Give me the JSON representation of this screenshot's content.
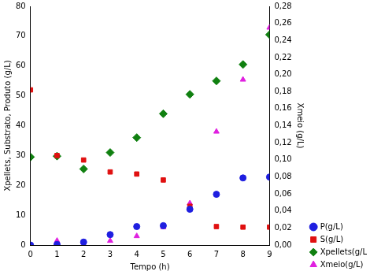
{
  "chart_data": {
    "type": "scatter",
    "x_label": "Tempo (h)",
    "y_label": "Xpellets, Substrato, Produto (g/L)",
    "y2_label": "Xmeio (g/L)",
    "x": [
      0,
      1,
      2,
      3,
      4,
      5,
      6,
      7,
      8,
      9
    ],
    "xlim": [
      0,
      9
    ],
    "xticks": [
      0,
      1,
      2,
      3,
      4,
      5,
      6,
      7,
      8,
      9
    ],
    "ylim": [
      0,
      80
    ],
    "yticks": [
      0,
      10,
      20,
      30,
      40,
      50,
      60,
      70,
      80
    ],
    "y2lim": [
      0,
      0.28
    ],
    "y2ticks": [
      {
        "value": 0,
        "label": "0,00"
      },
      {
        "value": 0.02,
        "label": "0,02"
      },
      {
        "value": 0.04,
        "label": "0,04"
      },
      {
        "value": 0.06,
        "label": "0,06"
      },
      {
        "value": 0.08,
        "label": "0,08"
      },
      {
        "value": 0.1,
        "label": "0,10"
      },
      {
        "value": 0.12,
        "label": "0,12"
      },
      {
        "value": 0.14,
        "label": "0,14"
      },
      {
        "value": 0.16,
        "label": "0,16"
      },
      {
        "value": 0.18,
        "label": "0,18"
      },
      {
        "value": 0.2,
        "label": "0,20"
      },
      {
        "value": 0.22,
        "label": "0,22"
      },
      {
        "value": 0.24,
        "label": "0,24"
      },
      {
        "value": 0.26,
        "label": "0,26"
      },
      {
        "value": 0.28,
        "label": "0,28"
      }
    ],
    "grid": false,
    "legend": "bottom right",
    "series": [
      {
        "name": "P(g/L)",
        "color": "#1f1fe0",
        "marker": "circle",
        "values": [
          0,
          0.2,
          1,
          3.5,
          6.2,
          6.5,
          12,
          17,
          22.5,
          22.8
        ]
      },
      {
        "name": "S(g/L)",
        "color": "#e01010",
        "marker": "square",
        "values": [
          52,
          30,
          28.5,
          24.5,
          23.8,
          21.8,
          13,
          6.2,
          6,
          6
        ]
      },
      {
        "name": "Xpellets(g/L)",
        "color": "#108010",
        "marker": "diamond",
        "values": [
          29.5,
          29.8,
          25.5,
          31,
          36,
          44,
          50.5,
          55,
          60.5,
          70.5
        ]
      },
      {
        "name": "Xmeio(g/L)",
        "color": "#e020e0",
        "marker": "triangle",
        "axis": "y2",
        "values": [
          null,
          0.005,
          0.003,
          0.005,
          0.0105,
          0.021,
          0.049,
          0.133,
          0.194,
          0.255
        ]
      }
    ]
  }
}
